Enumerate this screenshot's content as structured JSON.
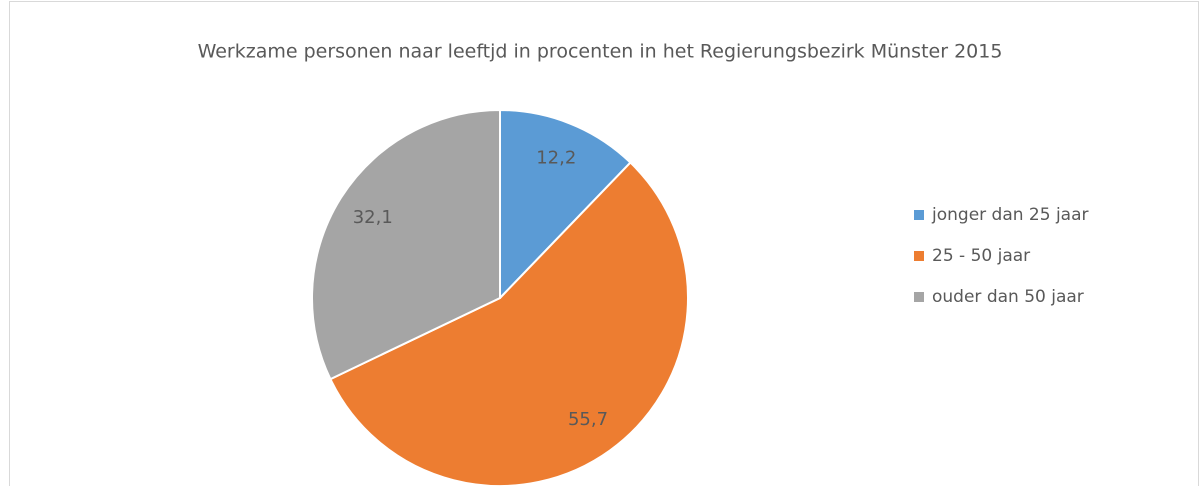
{
  "chart_data": {
    "type": "pie",
    "title": "Werkzame personen naar leeftjd in procenten in het Regierungsbezirk Münster 2015",
    "categories": [
      "jonger dan 25 jaar",
      "25 - 50 jaar",
      "ouder dan 50 jaar"
    ],
    "values": [
      12.2,
      55.7,
      32.1
    ],
    "value_labels": [
      "12,2",
      "55,7",
      "32,1"
    ],
    "colors": [
      "#5b9bd5",
      "#ed7d31",
      "#a5a5a5"
    ],
    "legend": "right"
  }
}
